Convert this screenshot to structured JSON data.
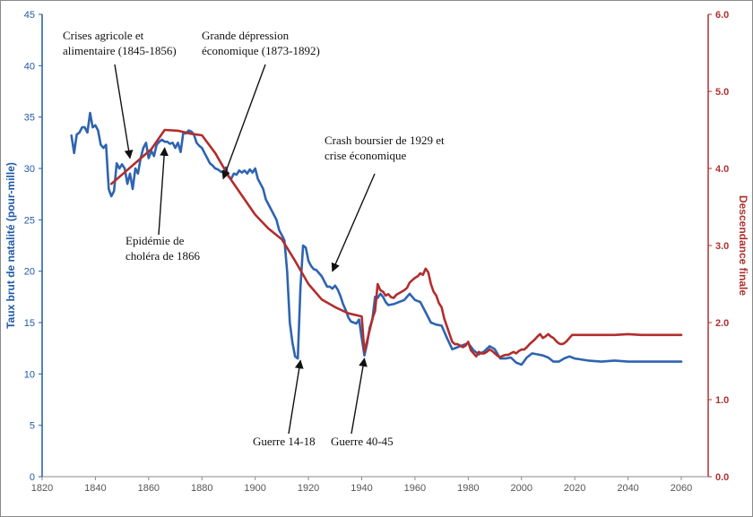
{
  "chart_data": {
    "type": "line",
    "title": "",
    "xlabel": "",
    "ylabel_left": "Taux brut de natalité (pour-mille)",
    "ylabel_right": "Descendance finale",
    "xlim": [
      1820,
      2060
    ],
    "ylim_left": [
      0,
      45
    ],
    "ylim_right": [
      0.0,
      6.0
    ],
    "x_ticks": [
      "1820",
      "1840",
      "1860",
      "1880",
      "1900",
      "1920",
      "1940",
      "1960",
      "1980",
      "2000",
      "2020",
      "2040",
      "2060"
    ],
    "y_left_ticks": [
      "0",
      "5",
      "10",
      "15",
      "20",
      "25",
      "30",
      "35",
      "40",
      "45"
    ],
    "y_right_ticks": [
      "0.0",
      "1.0",
      "2.0",
      "3.0",
      "4.0",
      "5.0",
      "6.0"
    ],
    "colors": {
      "birth_rate": "#2e64b0",
      "completed_fertility": "#b22d2d",
      "arrow": "#111111"
    },
    "series": [
      {
        "name": "Taux brut de natalité",
        "axis": "left",
        "x": [
          1831,
          1832,
          1833,
          1834,
          1835,
          1836,
          1837,
          1838,
          1839,
          1840,
          1841,
          1842,
          1843,
          1844,
          1845,
          1846,
          1847,
          1848,
          1849,
          1850,
          1851,
          1852,
          1853,
          1854,
          1855,
          1856,
          1857,
          1858,
          1859,
          1860,
          1861,
          1862,
          1863,
          1864,
          1865,
          1866,
          1867,
          1868,
          1869,
          1870,
          1871,
          1872,
          1873,
          1874,
          1875,
          1876,
          1877,
          1878,
          1879,
          1880,
          1881,
          1882,
          1883,
          1884,
          1885,
          1886,
          1887,
          1888,
          1889,
          1890,
          1891,
          1892,
          1893,
          1894,
          1895,
          1896,
          1897,
          1898,
          1899,
          1900,
          1901,
          1902,
          1903,
          1904,
          1905,
          1906,
          1907,
          1908,
          1909,
          1910,
          1911,
          1912,
          1913,
          1914,
          1915,
          1916,
          1917,
          1918,
          1919,
          1920,
          1921,
          1922,
          1923,
          1924,
          1925,
          1926,
          1927,
          1928,
          1929,
          1930,
          1931,
          1932,
          1933,
          1934,
          1935,
          1936,
          1937,
          1938,
          1939,
          1940,
          1941,
          1942,
          1943,
          1944,
          1945,
          1946,
          1947,
          1948,
          1949,
          1950,
          1952,
          1954,
          1956,
          1958,
          1960,
          1962,
          1964,
          1966,
          1968,
          1970,
          1972,
          1974,
          1976,
          1978,
          1980,
          1982,
          1984,
          1986,
          1988,
          1990,
          1992,
          1994,
          1996,
          1998,
          2000,
          2002,
          2004,
          2006,
          2008,
          2010,
          2012,
          2014,
          2016,
          2018,
          2020,
          2025,
          2030,
          2035,
          2040,
          2045,
          2050,
          2055,
          2060
        ],
        "values": [
          33.2,
          31.5,
          33.3,
          33.5,
          34.0,
          34.0,
          33.5,
          35.4,
          34.0,
          34.2,
          33.7,
          32.3,
          32.0,
          32.3,
          28.0,
          27.3,
          27.8,
          30.5,
          30.0,
          30.4,
          30.0,
          28.5,
          29.5,
          28.0,
          30.0,
          29.5,
          31.0,
          32.0,
          32.5,
          31.0,
          31.7,
          31.2,
          32.3,
          32.6,
          32.8,
          32.6,
          32.6,
          32.4,
          32.5,
          32.0,
          32.5,
          31.6,
          33.5,
          33.4,
          33.7,
          33.6,
          33.3,
          32.5,
          32.2,
          32.0,
          31.5,
          31.0,
          30.5,
          30.3,
          30.0,
          29.9,
          29.7,
          29.6,
          30.1,
          29.2,
          29.0,
          29.5,
          29.4,
          29.8,
          29.6,
          29.8,
          29.5,
          29.9,
          29.6,
          30.0,
          29.0,
          28.5,
          28.0,
          27.0,
          26.5,
          26.0,
          25.5,
          25.0,
          24.0,
          23.5,
          23.0,
          20.0,
          15.0,
          13.0,
          11.7,
          11.5,
          18.5,
          22.5,
          22.3,
          21.0,
          20.5,
          20.2,
          20.1,
          19.8,
          19.5,
          19.0,
          18.5,
          18.5,
          18.3,
          18.6,
          18.2,
          17.6,
          16.8,
          16.2,
          15.5,
          15.1,
          15.0,
          14.9,
          15.3,
          13.5,
          11.8,
          12.9,
          14.5,
          15.3,
          17.5,
          17.4,
          17.8,
          17.5,
          17.0,
          16.7,
          16.8,
          17.0,
          17.2,
          17.8,
          17.2,
          17.0,
          16.0,
          15.0,
          14.8,
          14.7,
          13.5,
          12.4,
          12.6,
          12.8,
          13.0,
          12.3,
          11.9,
          12.2,
          12.7,
          12.4,
          11.5,
          11.5,
          11.6,
          11.1,
          10.9,
          11.6,
          12.0,
          11.9,
          11.8,
          11.6,
          11.2,
          11.2,
          11.5,
          11.7,
          11.5,
          11.3,
          11.2,
          11.3,
          11.2,
          11.2,
          11.2,
          11.2,
          11.2
        ]
      },
      {
        "name": "Descendance finale",
        "axis": "right",
        "x": [
          1846,
          1851,
          1856,
          1861,
          1866,
          1871,
          1876,
          1880,
          1885,
          1890,
          1895,
          1900,
          1905,
          1910,
          1915,
          1920,
          1925,
          1930,
          1935,
          1940,
          1941,
          1943,
          1944,
          1945,
          1946,
          1947,
          1948,
          1949,
          1950,
          1951,
          1952,
          1953,
          1954,
          1955,
          1956,
          1957,
          1958,
          1959,
          1960,
          1961,
          1962,
          1963,
          1964,
          1965,
          1966,
          1967,
          1968,
          1969,
          1970,
          1971,
          1972,
          1973,
          1974,
          1975,
          1976,
          1977,
          1978,
          1979,
          1980,
          1981,
          1982,
          1983,
          1984,
          1985,
          1986,
          1987,
          1988,
          1989,
          1990,
          1991,
          1992,
          1993,
          1994,
          1995,
          1996,
          1997,
          1998,
          1999,
          2000,
          2001,
          2002,
          2003,
          2004,
          2005,
          2006,
          2007,
          2008,
          2009,
          2010,
          2011,
          2012,
          2013,
          2014,
          2015,
          2016,
          2017,
          2018,
          2019,
          2020,
          2025,
          2030,
          2035,
          2040,
          2045,
          2050,
          2055,
          2060
        ],
        "values": [
          3.8,
          3.95,
          4.1,
          4.25,
          4.5,
          4.49,
          4.45,
          4.43,
          4.2,
          3.9,
          3.65,
          3.4,
          3.22,
          3.08,
          2.8,
          2.5,
          2.3,
          2.2,
          2.12,
          2.08,
          1.62,
          1.9,
          2.05,
          2.15,
          2.5,
          2.42,
          2.4,
          2.35,
          2.37,
          2.33,
          2.32,
          2.36,
          2.38,
          2.4,
          2.42,
          2.45,
          2.52,
          2.55,
          2.58,
          2.6,
          2.64,
          2.62,
          2.7,
          2.65,
          2.5,
          2.4,
          2.35,
          2.25,
          2.2,
          2.05,
          1.95,
          1.85,
          1.75,
          1.72,
          1.72,
          1.7,
          1.68,
          1.7,
          1.75,
          1.64,
          1.6,
          1.56,
          1.62,
          1.6,
          1.6,
          1.62,
          1.65,
          1.63,
          1.6,
          1.57,
          1.55,
          1.57,
          1.58,
          1.58,
          1.6,
          1.62,
          1.6,
          1.63,
          1.65,
          1.65,
          1.68,
          1.72,
          1.75,
          1.78,
          1.82,
          1.85,
          1.8,
          1.82,
          1.85,
          1.82,
          1.8,
          1.76,
          1.73,
          1.72,
          1.73,
          1.76,
          1.8,
          1.84,
          1.84,
          1.84,
          1.84,
          1.84,
          1.85,
          1.84,
          1.84,
          1.84,
          1.84
        ]
      }
    ],
    "annotations": [
      {
        "lines": [
          "Crises agricole et",
          "alimentaire (1845-1856)"
        ],
        "arrow_x": 1853,
        "arrow_y_left": 31
      },
      {
        "lines": [
          "Grande dépression",
          "économique (1873-1892)"
        ],
        "arrow_x": 1888,
        "arrow_y_left": 29
      },
      {
        "lines": [
          "Crash boursier de 1929 et",
          "crise économique"
        ],
        "arrow_x": 1929,
        "arrow_y_left": 20
      },
      {
        "lines": [
          "Epidémie de",
          "choléra de 1866"
        ],
        "arrow_x": 1866,
        "arrow_y_left": 32
      },
      {
        "lines": [
          "Guerre 14-18"
        ],
        "arrow_x": 1917,
        "arrow_y_left": 11.3
      },
      {
        "lines": [
          "Guerre 40-45"
        ],
        "arrow_x": 1941,
        "arrow_y_left": 11.5
      }
    ]
  }
}
